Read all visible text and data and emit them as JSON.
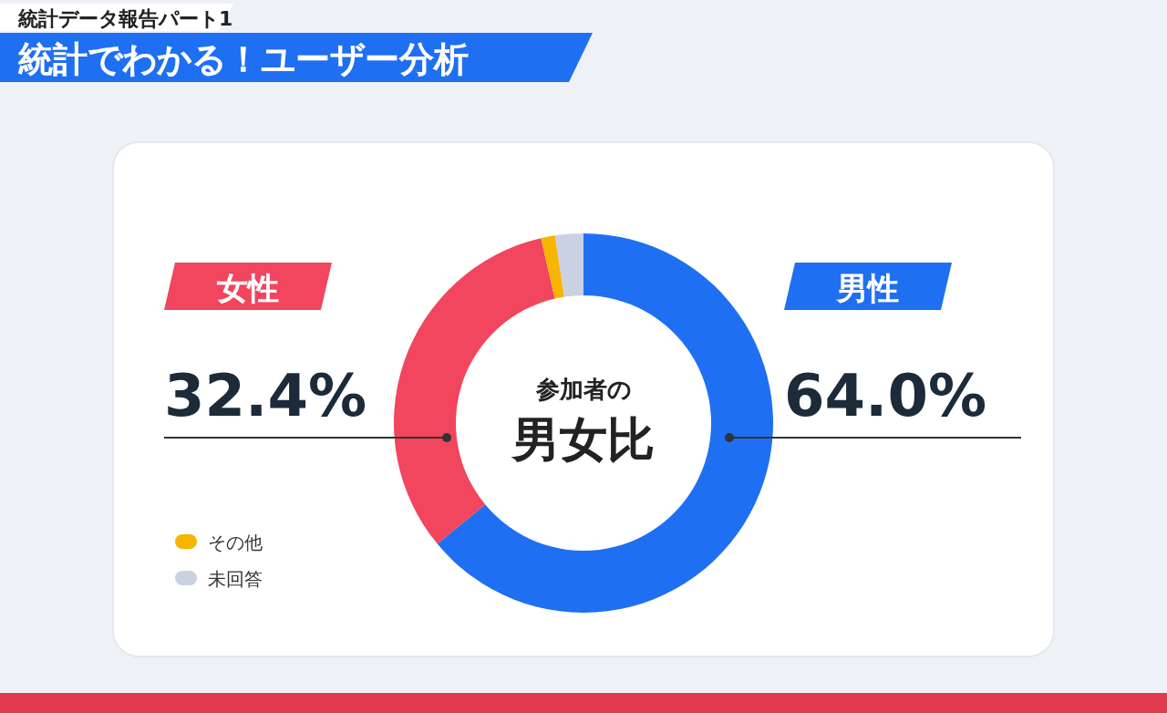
{
  "chart_data": {
    "type": "donut",
    "subtitle": "統計データ報告パート1",
    "title": "統計でわかる！ユーザー分析",
    "categories": [
      "男性",
      "女性",
      "その他",
      "未回答"
    ],
    "values": [
      64.0,
      32.4,
      1.2,
      2.4
    ],
    "colors": [
      "#1f6ff2",
      "#f2455e",
      "#f7b500",
      "#c9d1e3"
    ],
    "value_labels": [
      "64.0%",
      "32.4%",
      null,
      null
    ],
    "annotations": [
      "参加者の",
      "男女比"
    ],
    "legend": "bottom left"
  }
}
